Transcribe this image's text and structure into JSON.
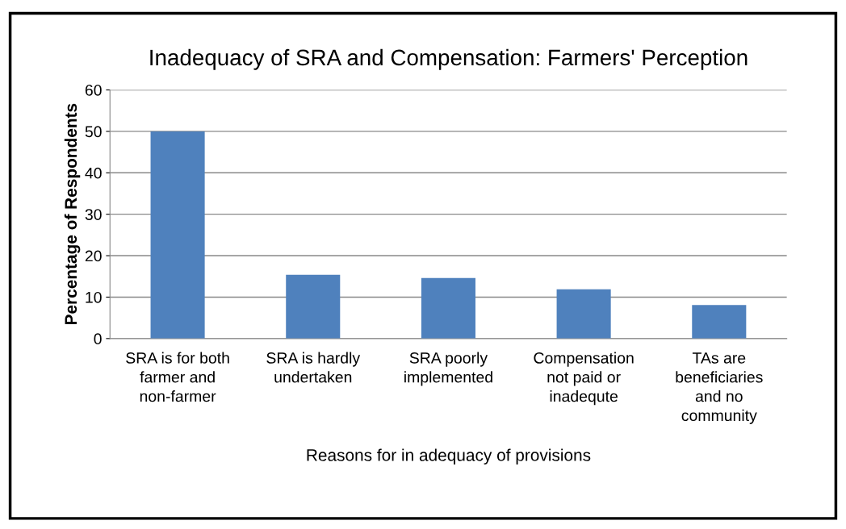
{
  "chart_data": {
    "type": "bar",
    "title": "Inadequacy of SRA and Compensation: Farmers' Perception",
    "xlabel": "Reasons for in adequacy of provisions",
    "ylabel": "Percentage of Respondents",
    "categories": [
      "SRA is for both\nfarmer and\nnon-farmer",
      "SRA is hardly\nundertaken",
      "SRA poorly\nimplemented",
      "Compensation\nnot paid or\ninadequte",
      "TAs are\nbeneficiaries\nand no\ncommunity"
    ],
    "values": [
      50,
      15.4,
      14.6,
      11.9,
      8.1
    ],
    "color": "#4f81bd",
    "ylim": [
      0,
      60
    ],
    "yticks": [
      0,
      10,
      20,
      30,
      40,
      50,
      60
    ],
    "grid": "y",
    "legend": false
  }
}
